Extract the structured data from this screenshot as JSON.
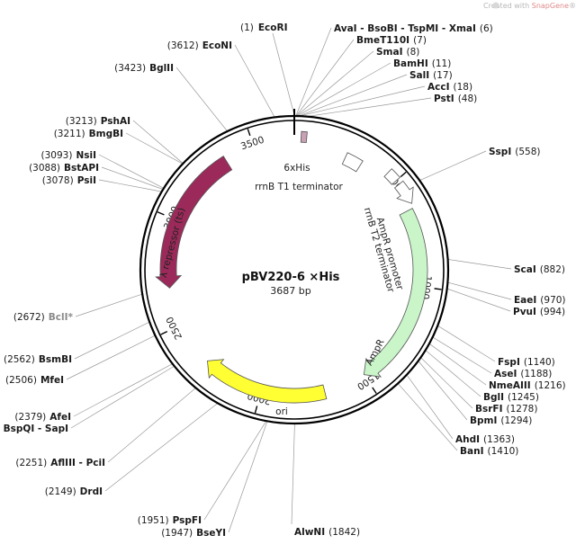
{
  "plasmid": {
    "name": "pBV220-6 ×His",
    "length_label": "3687 bp",
    "length": 3687
  },
  "watermark": {
    "prefix": "Created with ",
    "brand": "SnapGene",
    "suffix": "®"
  },
  "ticks": [
    {
      "pos": 500,
      "label": "500"
    },
    {
      "pos": 1000,
      "label": "1000"
    },
    {
      "pos": 1500,
      "label": "1500"
    },
    {
      "pos": 2000,
      "label": "2000"
    },
    {
      "pos": 2500,
      "label": "2500"
    },
    {
      "pos": 3000,
      "label": "3000"
    },
    {
      "pos": 3500,
      "label": "3500"
    }
  ],
  "sites_right": [
    {
      "name": "EcoRI",
      "pos_label": "(1)",
      "pos": 1
    },
    {
      "name": "AvaI - BsoBI - TspMI - XmaI",
      "pos_label": "(6)",
      "pos": 6
    },
    {
      "name": "BmeT110I",
      "pos_label": "(7)",
      "pos": 7
    },
    {
      "name": "SmaI",
      "pos_label": "(8)",
      "pos": 8
    },
    {
      "name": "BamHI",
      "pos_label": "(11)",
      "pos": 11
    },
    {
      "name": "SalI",
      "pos_label": "(17)",
      "pos": 17
    },
    {
      "name": "AccI",
      "pos_label": "(18)",
      "pos": 18
    },
    {
      "name": "PstI",
      "pos_label": "(48)",
      "pos": 48
    },
    {
      "name": "SspI",
      "pos_label": "(558)",
      "pos": 558
    },
    {
      "name": "ScaI",
      "pos_label": "(882)",
      "pos": 882
    },
    {
      "name": "EaeI",
      "pos_label": "(970)",
      "pos": 970
    },
    {
      "name": "PvuI",
      "pos_label": "(994)",
      "pos": 994
    },
    {
      "name": "FspI",
      "pos_label": "(1140)",
      "pos": 1140
    },
    {
      "name": "AseI",
      "pos_label": "(1188)",
      "pos": 1188
    },
    {
      "name": "NmeAIII",
      "pos_label": "(1216)",
      "pos": 1216
    },
    {
      "name": "BglI",
      "pos_label": "(1245)",
      "pos": 1245
    },
    {
      "name": "BsrFI",
      "pos_label": "(1278)",
      "pos": 1278
    },
    {
      "name": "BpmI",
      "pos_label": "(1294)",
      "pos": 1294
    },
    {
      "name": "AhdI",
      "pos_label": "(1363)",
      "pos": 1363
    },
    {
      "name": "BanI",
      "pos_label": "(1410)",
      "pos": 1410
    },
    {
      "name": "AlwNI",
      "pos_label": "(1842)",
      "pos": 1842
    }
  ],
  "sites_left": [
    {
      "name": "EcoNI",
      "pos_label": "(3612)",
      "pos": 3612
    },
    {
      "name": "BglII",
      "pos_label": "(3423)",
      "pos": 3423
    },
    {
      "name": "PshAI",
      "pos_label": "(3213)",
      "pos": 3213
    },
    {
      "name": "BmgBI",
      "pos_label": "(3211)",
      "pos": 3211
    },
    {
      "name": "NsiI",
      "pos_label": "(3093)",
      "pos": 3093
    },
    {
      "name": "BstAPI",
      "pos_label": "(3088)",
      "pos": 3088
    },
    {
      "name": "PsiI",
      "pos_label": "(3078)",
      "pos": 3078
    },
    {
      "name": "BclI*",
      "pos_label": "(2672)",
      "pos": 2672,
      "grey": true
    },
    {
      "name": "BsmBI",
      "pos_label": "(2562)",
      "pos": 2562
    },
    {
      "name": "MfeI",
      "pos_label": "(2506)",
      "pos": 2506
    },
    {
      "name": "AfeI",
      "pos_label": "(2379)",
      "pos": 2379
    },
    {
      "name": "BspQI - SapI",
      "pos_label": "(2368)",
      "pos": 2368
    },
    {
      "name": "AflIII - PciI",
      "pos_label": "(2251)",
      "pos": 2251
    },
    {
      "name": "DrdI",
      "pos_label": "(2149)",
      "pos": 2149
    },
    {
      "name": "PspFI",
      "pos_label": "(1951)",
      "pos": 1951
    },
    {
      "name": "BseYI",
      "pos_label": "(1947)",
      "pos": 1947
    }
  ],
  "features": [
    {
      "name": "6xHis",
      "start": 30,
      "end": 55,
      "color": "#c9a0b4",
      "type": "box"
    },
    {
      "name": "rrnB T1 terminator",
      "start": 250,
      "end": 330,
      "color": "#ffffff",
      "type": "box"
    },
    {
      "name": "rrnB T2 terminator",
      "start": 450,
      "end": 500,
      "color": "#ffffff",
      "type": "box"
    },
    {
      "name": "AmpR promoter",
      "start": 520,
      "end": 620,
      "color": "#ffffff",
      "type": "arrow"
    },
    {
      "name": "AmpR",
      "start": 640,
      "end": 1500,
      "color": "#c9f5c9",
      "type": "arrow"
    },
    {
      "name": "ori",
      "start": 1700,
      "end": 2290,
      "color": "#ffff33",
      "type": "arrow"
    },
    {
      "name": "λ repressor (ts)",
      "start": 3360,
      "end": 2680,
      "color": "#9b2a5a",
      "type": "arrow"
    }
  ]
}
